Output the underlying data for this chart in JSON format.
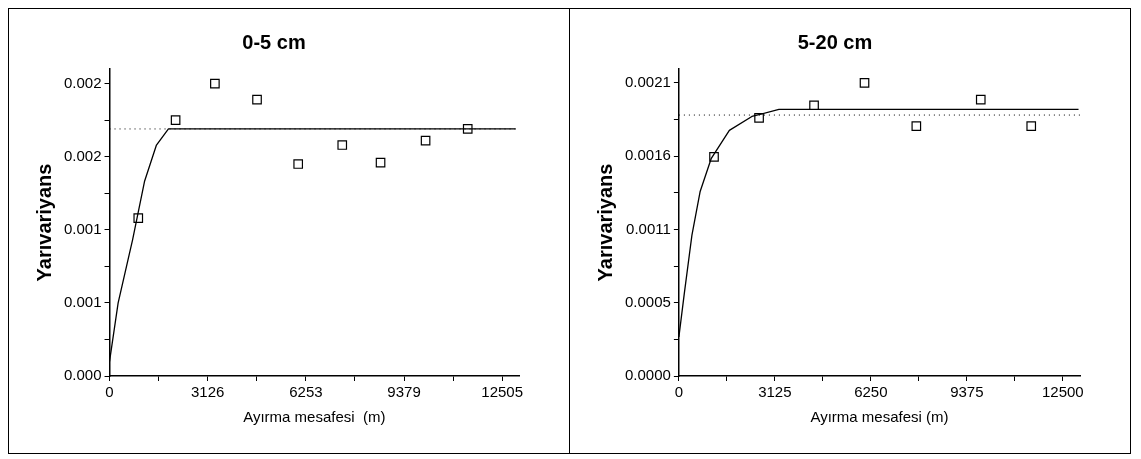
{
  "chart_data": [
    {
      "type": "scatter",
      "title": "0-5 cm",
      "xlabel": "Ayırma mesafesi  (m)",
      "ylabel": "Yarıvariyans",
      "grid": false,
      "legend": false,
      "xlim": [
        0,
        13040
      ],
      "xticks": [
        0,
        {
          "value": 1563,
          "label": null
        },
        3126,
        {
          "value": 4689,
          "label": null
        },
        6253,
        {
          "value": 7816,
          "label": null
        },
        9379,
        {
          "value": 10942,
          "label": null
        },
        12505
      ],
      "ylim": [
        0,
        0.0021
      ],
      "yticks": [
        {
          "value": 0,
          "label": "0.000"
        },
        {
          "value": 0.00025,
          "label": null
        },
        {
          "value": 0.0005,
          "label": "0.001"
        },
        {
          "value": 0.00075,
          "label": null
        },
        {
          "value": 0.001,
          "label": "0.001"
        },
        {
          "value": 0.00125,
          "label": null
        },
        {
          "value": 0.0015,
          "label": "0.002"
        },
        {
          "value": 0.00175,
          "label": null
        },
        {
          "value": 0.002,
          "label": "0.002"
        }
      ],
      "ref_lines": [
        {
          "axis": "y",
          "value": 0.00169,
          "line_style": "dotted",
          "color": "#000000"
        }
      ],
      "series": [
        {
          "color": "#000000",
          "marker": "square",
          "x": [
            915,
            2104,
            3355,
            4697,
            6008,
            7411,
            8631,
            10065,
            11407
          ],
          "values": [
            0.00108,
            0.00175,
            0.002,
            0.00189,
            0.00145,
            0.00158,
            0.00146,
            0.00161,
            0.00169
          ]
        },
        {
          "type": "line",
          "color": "#000000",
          "marker": "none",
          "line_style": "solid",
          "x": [
            0,
            274,
            732,
            1113,
            1494,
            1876,
            12932
          ],
          "values": [
            0.0001,
            0.0005,
            0.00093,
            0.00133,
            0.00158,
            0.00169,
            0.00169
          ]
        }
      ]
    },
    {
      "type": "scatter",
      "title": "5-20 cm",
      "xlabel": "Ayırma mesafesi (m)",
      "ylabel": "Yarıvariyans",
      "grid": false,
      "legend": false,
      "xlim": [
        0,
        13060
      ],
      "xticks": [
        0,
        {
          "value": 1562.5,
          "label": null
        },
        3125,
        {
          "value": 4687.5,
          "label": null
        },
        6250,
        {
          "value": 7812.5,
          "label": null
        },
        9375,
        {
          "value": 10937.5,
          "label": null
        },
        12500
      ],
      "ylim": [
        0,
        0.0022
      ],
      "yticks": [
        {
          "value": 0,
          "label": "0.0000"
        },
        {
          "value": 0.0002625,
          "label": null
        },
        {
          "value": 0.000525,
          "label": "0.0005"
        },
        {
          "value": 0.0007875,
          "label": null
        },
        {
          "value": 0.00105,
          "label": "0.0011"
        },
        {
          "value": 0.0013125,
          "label": null
        },
        {
          "value": 0.001575,
          "label": "0.0016"
        },
        {
          "value": 0.0018375,
          "label": null
        },
        0.0021
      ],
      "ref_lines": [
        {
          "axis": "y",
          "value": 0.00187,
          "line_style": "dotted",
          "color": "#000000"
        }
      ],
      "series": [
        {
          "color": "#000000",
          "marker": "square",
          "x": [
            1144,
            2611,
            4401,
            6044,
            7731,
            9829,
            11472
          ],
          "values": [
            0.00157,
            0.00185,
            0.00194,
            0.0021,
            0.00179,
            0.00198,
            0.00179
          ]
        },
        {
          "type": "line",
          "color": "#000000",
          "marker": "none",
          "line_style": "solid",
          "x": [
            0,
            176,
            425,
            690,
            1056,
            1643,
            2377,
            3257,
            13012
          ],
          "values": [
            0.00028,
            0.00059,
            0.00101,
            0.00132,
            0.00156,
            0.00176,
            0.00186,
            0.00191,
            0.00191
          ]
        }
      ]
    }
  ]
}
